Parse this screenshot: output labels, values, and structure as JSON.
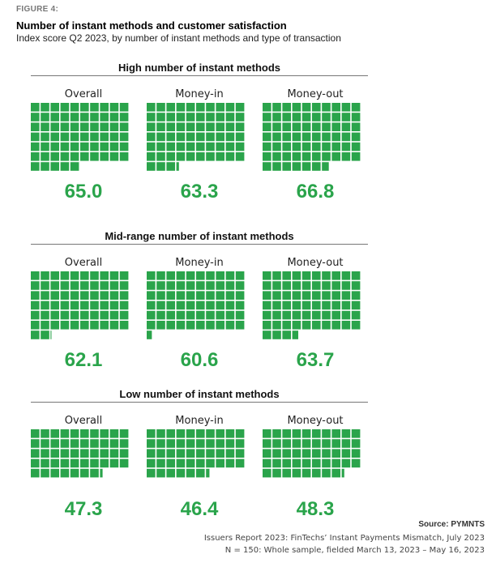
{
  "figure_label": "FIGURE 4:",
  "title": "Number of instant methods and customer satisfaction",
  "subtitle": "Index score Q2 2023, by number of instant methods and type of transaction",
  "colors": {
    "fill": "#2aa44b",
    "value_text": "#2aa44b"
  },
  "chart_data": [
    {
      "type": "waffle",
      "title": "High number of instant methods",
      "unit_count": 100,
      "categories": [
        "Overall",
        "Money-in",
        "Money-out"
      ],
      "values": [
        65.0,
        63.3,
        66.8
      ],
      "value_labels": [
        "65.0",
        "63.3",
        "66.8"
      ]
    },
    {
      "type": "waffle",
      "title": "Mid-range number of instant methods",
      "unit_count": 100,
      "categories": [
        "Overall",
        "Money-in",
        "Money-out"
      ],
      "values": [
        62.1,
        60.6,
        63.7
      ],
      "value_labels": [
        "62.1",
        "60.6",
        "63.7"
      ]
    },
    {
      "type": "waffle",
      "title": "Low number of instant methods",
      "unit_count": 100,
      "categories": [
        "Overall",
        "Money-in",
        "Money-out"
      ],
      "values": [
        47.3,
        46.4,
        48.3
      ],
      "value_labels": [
        "47.3",
        "46.4",
        "48.3"
      ]
    }
  ],
  "footer": {
    "source": "Source: PYMNTS",
    "report": "Issuers Report 2023: FinTechs’ Instant Payments Mismatch, July 2023",
    "sample": "N = 150: Whole sample, fielded March 13, 2023 – May 16, 2023"
  }
}
